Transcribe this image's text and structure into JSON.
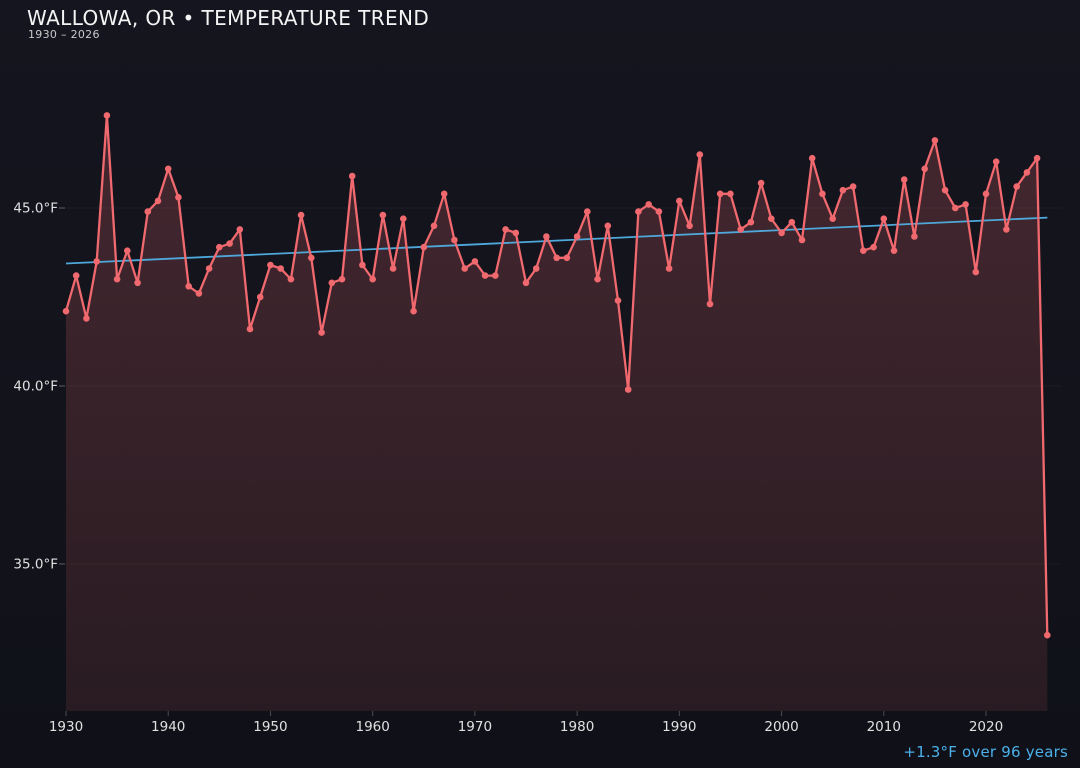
{
  "header": {
    "title": "WALLOWA, OR • TEMPERATURE TREND",
    "subtitle": "1930 – 2026"
  },
  "chart_data": {
    "type": "line",
    "title": "WALLOWA, OR • TEMPERATURE TREND",
    "subtitle": "1930 – 2026",
    "x_start": 1930,
    "x_end": 2026,
    "years": [
      1930,
      1931,
      1932,
      1933,
      1934,
      1935,
      1936,
      1937,
      1938,
      1939,
      1940,
      1941,
      1942,
      1943,
      1944,
      1945,
      1946,
      1947,
      1948,
      1949,
      1950,
      1951,
      1952,
      1953,
      1954,
      1955,
      1956,
      1957,
      1958,
      1959,
      1960,
      1961,
      1962,
      1963,
      1964,
      1965,
      1966,
      1967,
      1968,
      1969,
      1970,
      1971,
      1972,
      1973,
      1974,
      1975,
      1976,
      1977,
      1978,
      1979,
      1980,
      1981,
      1982,
      1983,
      1984,
      1985,
      1986,
      1987,
      1988,
      1989,
      1990,
      1991,
      1992,
      1993,
      1994,
      1995,
      1996,
      1997,
      1998,
      1999,
      2000,
      2001,
      2002,
      2003,
      2004,
      2005,
      2006,
      2007,
      2008,
      2009,
      2010,
      2011,
      2012,
      2013,
      2014,
      2015,
      2016,
      2017,
      2018,
      2019,
      2020,
      2021,
      2022,
      2023,
      2024,
      2025,
      2026
    ],
    "values": [
      42.1,
      43.1,
      41.9,
      43.5,
      47.6,
      43.0,
      43.8,
      42.9,
      44.9,
      45.2,
      46.1,
      45.3,
      42.8,
      42.6,
      43.3,
      43.9,
      44.0,
      44.4,
      41.6,
      42.5,
      43.4,
      43.3,
      43.0,
      44.8,
      43.6,
      41.5,
      42.9,
      43.0,
      45.9,
      43.4,
      43.0,
      44.8,
      43.3,
      44.7,
      42.1,
      43.9,
      44.5,
      45.4,
      44.1,
      43.3,
      43.5,
      43.1,
      43.1,
      44.4,
      44.3,
      42.9,
      43.3,
      44.2,
      43.6,
      43.6,
      44.2,
      44.9,
      43.0,
      44.5,
      42.4,
      39.9,
      44.9,
      45.1,
      44.9,
      43.3,
      45.2,
      44.5,
      46.5,
      42.3,
      45.4,
      45.4,
      44.4,
      44.6,
      45.7,
      44.7,
      44.3,
      44.6,
      44.1,
      46.4,
      45.4,
      44.7,
      45.5,
      45.6,
      43.8,
      43.9,
      44.7,
      43.8,
      45.8,
      44.2,
      46.1,
      46.9,
      45.5,
      45.0,
      45.1,
      43.2,
      45.4,
      46.3,
      44.4,
      45.6,
      46.0,
      46.4,
      33.0
    ],
    "unit": "°F",
    "ylim": [
      30.9,
      48.5
    ],
    "yticks": [
      {
        "v": 45,
        "label": "45.0°F"
      },
      {
        "v": 40,
        "label": "40.0°F"
      },
      {
        "v": 35,
        "label": "35.0°F"
      }
    ],
    "xticks": [
      {
        "v": 1930,
        "label": "1930"
      },
      {
        "v": 1940,
        "label": "1940"
      },
      {
        "v": 1950,
        "label": "1950"
      },
      {
        "v": 1960,
        "label": "1960"
      },
      {
        "v": 1970,
        "label": "1970"
      },
      {
        "v": 1980,
        "label": "1980"
      },
      {
        "v": 1990,
        "label": "1990"
      },
      {
        "v": 2000,
        "label": "2000"
      },
      {
        "v": 2010,
        "label": "2010"
      },
      {
        "v": 2020,
        "label": "2020"
      }
    ],
    "trend": {
      "start_f": 43.44,
      "end_f": 44.73,
      "label": "+1.3°F over 96 years"
    },
    "legend": "none",
    "grid": "faint-horizontal",
    "colors": {
      "line": "#ef696e",
      "marker": "#ef696e",
      "trend": "#4fa8da",
      "annotation": "#4cb0ea",
      "tick_text": "#e0e0e0",
      "background": "#12131b"
    }
  }
}
